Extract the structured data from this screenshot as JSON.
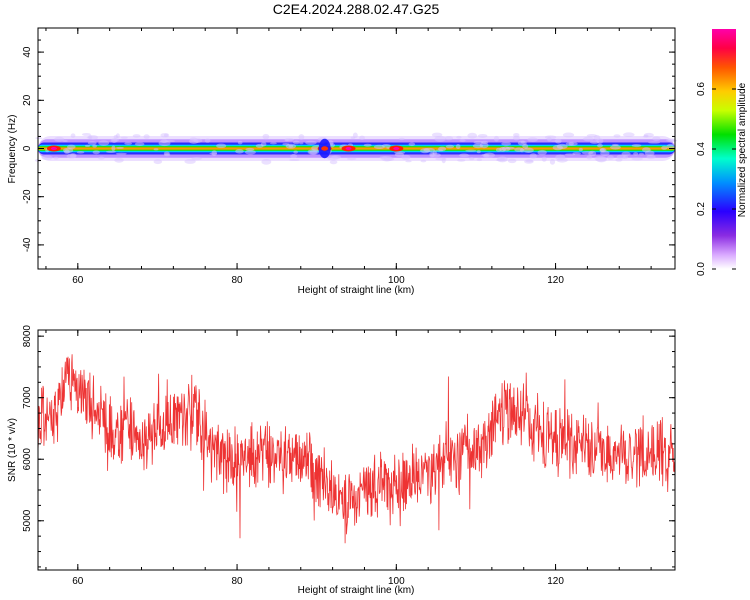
{
  "page_title": "C2E4.2024.288.02.47.G25",
  "chart_data": [
    {
      "type": "heatmap",
      "xlabel": "Height of straight line (km)",
      "ylabel": "Frequency (Hz)",
      "xlim": [
        55,
        135
      ],
      "ylim": [
        -50,
        50
      ],
      "x_ticks": [
        60,
        80,
        100,
        120
      ],
      "y_ticks": [
        40,
        20,
        0,
        -20,
        -40
      ],
      "colorbar": {
        "label": "Normalized spectral amplitude",
        "range": [
          0,
          0.8
        ],
        "ticks": [
          "0.0",
          "0.2",
          "0.4",
          "0.6"
        ]
      },
      "band": {
        "center_frequency": 0,
        "half_width_hz": 4.5,
        "core_amplitude": 0.55,
        "hotspots": [
          {
            "x": 91,
            "amplitude": 0.75
          },
          {
            "x": 94,
            "amplitude": 0.72
          },
          {
            "x": 100,
            "amplitude": 0.7
          },
          {
            "x": 57,
            "amplitude": 0.68
          }
        ]
      }
    },
    {
      "type": "line",
      "xlabel": "Height of straight line (km)",
      "ylabel": "SNR (10 * v/v)",
      "xlim": [
        55,
        135
      ],
      "ylim": [
        4200,
        8100
      ],
      "x_ticks": [
        60,
        80,
        100,
        120
      ],
      "y_ticks": [
        8000,
        7000,
        6000,
        5000
      ],
      "series": [
        {
          "color": "#ee3333",
          "envelope_x": [
            55,
            57,
            59,
            61,
            63,
            65,
            67,
            69,
            71,
            73,
            75,
            77,
            80,
            83,
            86,
            89,
            92,
            94,
            96,
            98,
            100,
            102,
            104,
            106,
            108,
            110,
            112,
            114,
            116,
            118,
            120,
            122,
            124,
            126,
            128,
            130,
            132,
            134,
            135
          ],
          "envelope_y": [
            6600,
            6700,
            7400,
            7000,
            6700,
            6300,
            6500,
            6300,
            6600,
            6800,
            6700,
            6000,
            6000,
            6100,
            6050,
            5900,
            5400,
            5300,
            5450,
            5600,
            5500,
            5700,
            5800,
            6000,
            6000,
            6200,
            6400,
            6800,
            6700,
            6400,
            6350,
            6250,
            6200,
            6150,
            6100,
            6150,
            6200,
            6100,
            6000
          ],
          "noise_amplitude": 650
        }
      ]
    }
  ]
}
